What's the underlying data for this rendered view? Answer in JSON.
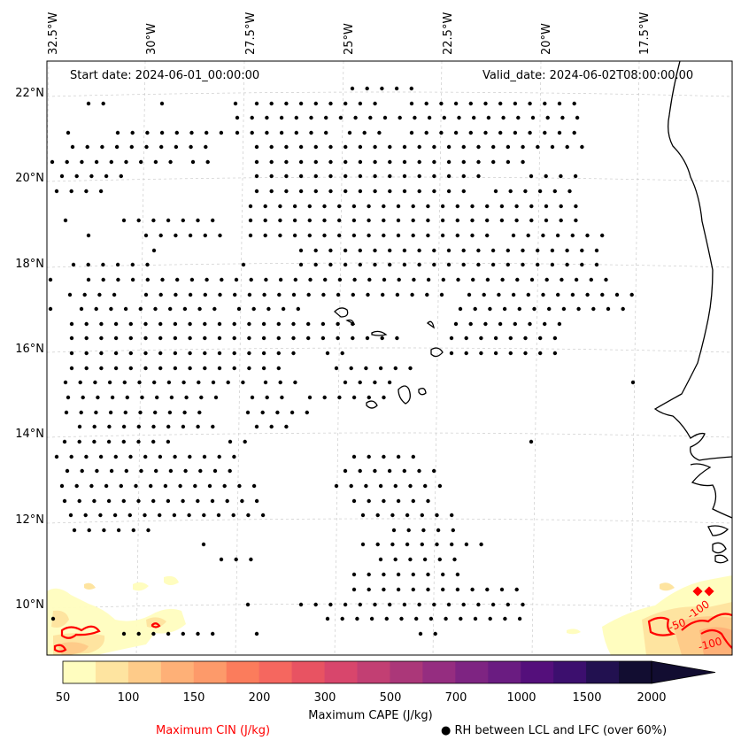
{
  "header": {
    "start_date": "Start date: 2024-06-01_00:00:00",
    "valid_date": "Valid_date: 2024-06-02T08:00:00.00"
  },
  "axes": {
    "lon_labels": [
      "32.5°W",
      "30°W",
      "27.5°W",
      "25°W",
      "22.5°W",
      "20°W",
      "17.5°W"
    ],
    "lat_labels": [
      "22°N",
      "20°N",
      "18°N",
      "16°N",
      "14°N",
      "12°N",
      "10°N"
    ]
  },
  "colorbar": {
    "title": "Maximum CAPE (J/kg)",
    "ticks": [
      "50",
      "100",
      "150",
      "200",
      "300",
      "500",
      "700",
      "1000",
      "1500",
      "2000"
    ],
    "colors": [
      "#fffdbf",
      "#fee4a0",
      "#fecb89",
      "#feb077",
      "#fd9a6a",
      "#fb7c5c",
      "#f5675f",
      "#e85362",
      "#d8466c",
      "#c23f73",
      "#ab3779",
      "#952d80",
      "#7e2482",
      "#6a1c81",
      "#540f7b",
      "#3c0f6e",
      "#221150",
      "#120d31"
    ]
  },
  "legend": {
    "cin_label": "Maximum CIN (J/kg)",
    "cin_color": "#ff0000",
    "rh_label": "RH between LCL and LFC (over 60%)",
    "rh_marker": "filled-circle"
  },
  "contour_labels": [
    "-50",
    "-100",
    "-100"
  ]
}
